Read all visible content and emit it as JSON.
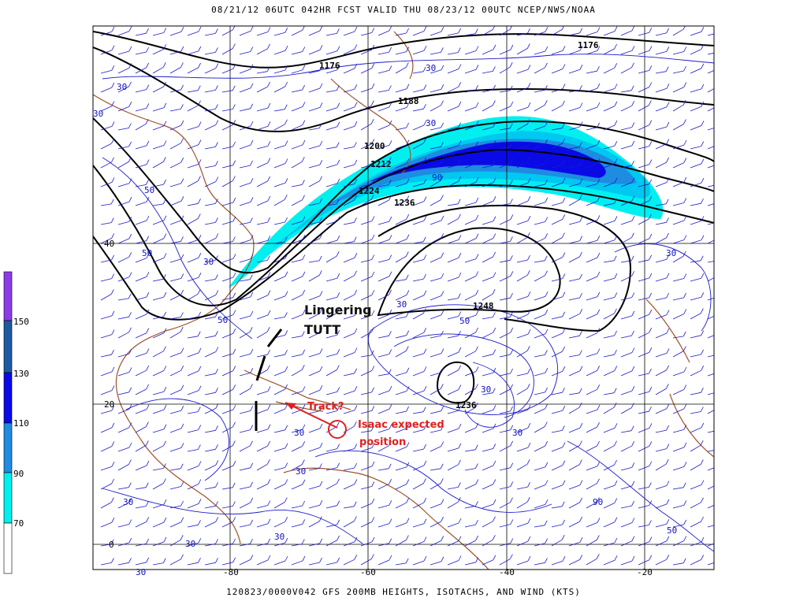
{
  "header": {
    "title": "08/21/12 06UTC  042HR  FCST VALID THU 08/23/12 00UTC  NCEP/NWS/NOAA"
  },
  "footer": {
    "caption": "120823/0000V042 GFS 200MB HEIGHTS, ISOTACHS, AND WIND (KTS)"
  },
  "legend": {
    "levels": [
      "70",
      "90",
      "110",
      "130",
      "150"
    ],
    "colors": [
      "#00f0f0",
      "#00c8f0",
      "#1e8ce0",
      "#0a0ae6",
      "#1e5aa0",
      "#8c3ce6"
    ]
  },
  "axes": {
    "lon_labels": [
      "-80",
      "-60",
      "-40",
      "-20"
    ],
    "lat_labels": [
      "40",
      "20",
      "0"
    ]
  },
  "height_labels": [
    "1176",
    "1176",
    "1188",
    "1200",
    "1212",
    "1224",
    "1236",
    "1248",
    "1236"
  ],
  "isotach_labels": [
    "30",
    "30",
    "50",
    "50",
    "30",
    "50",
    "90",
    "90",
    "30",
    "50",
    "30",
    "30",
    "30",
    "30",
    "30",
    "30",
    "90",
    "30",
    "30",
    "50",
    "30",
    "30",
    "30"
  ],
  "annotations": {
    "tutt_line1": "Lingering",
    "tutt_line2": "TUTT",
    "track": "Track?",
    "isaac_line1": "Isaac expected",
    "isaac_line2": "position"
  },
  "colors": {
    "coast": "#a0522d",
    "height_contour": "#000000",
    "isotach_contour": "#1a1acc",
    "annotation_red": "#e02020"
  }
}
